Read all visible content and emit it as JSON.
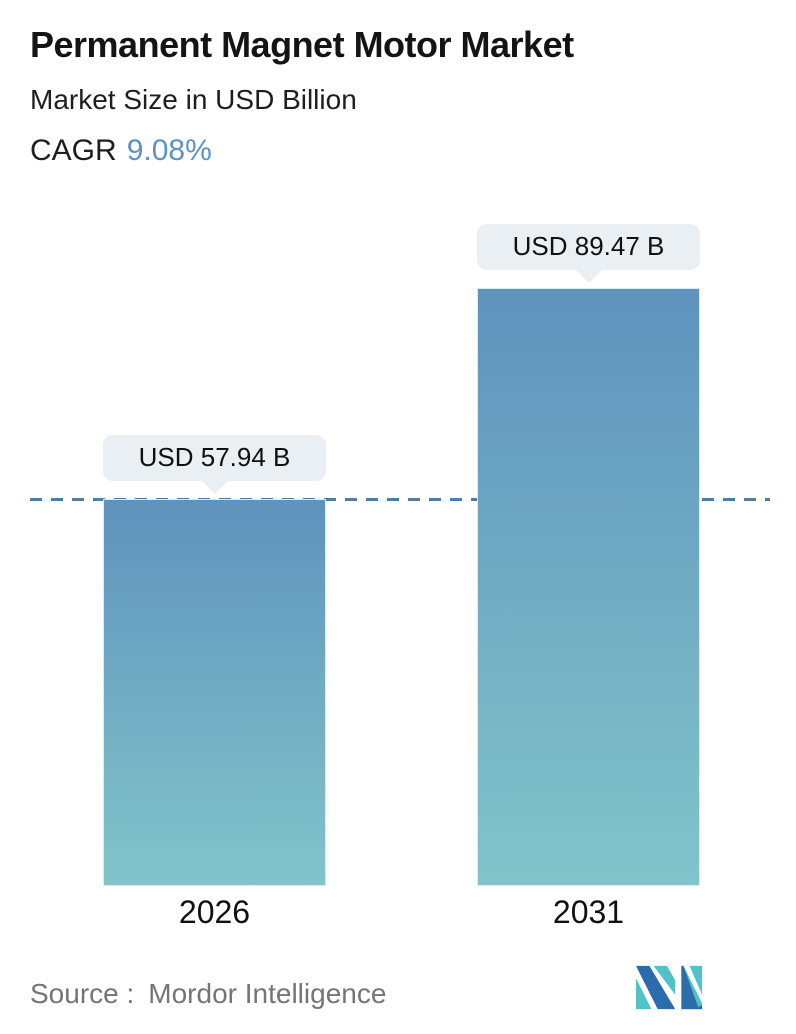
{
  "header": {
    "title": "Permanent Magnet Motor Market",
    "subtitle": "Market Size in USD Billion",
    "cagr_label": "CAGR",
    "cagr_value": "9.08%"
  },
  "chart_data": {
    "type": "bar",
    "categories": [
      "2026",
      "2031"
    ],
    "values": [
      57.94,
      89.47
    ],
    "value_labels": [
      "USD 57.94 B",
      "USD 89.47 B"
    ],
    "unit": "USD Billion",
    "title": "Permanent Magnet Motor Market",
    "ylabel": "Market Size in USD Billion",
    "cagr": "9.08%",
    "grid": false,
    "legend": "none",
    "reference_line": {
      "at_value": 57.94,
      "style": "dashed",
      "color": "#4d7ea8"
    },
    "bar_gradient_top": "#5f93bd",
    "bar_gradient_bottom": "#82c4ca"
  },
  "colors": {
    "accent_blue": "#5d92c3",
    "dash_line": "#4d7ea8",
    "tooltip_bg": "#e9eff2",
    "bar_top": "#5f93bd",
    "bar_bottom": "#82c4ca",
    "source_gray": "#757575",
    "logo_blue": "#2b6cab",
    "logo_teal": "#4fc3c8"
  },
  "footer": {
    "source_label": "Source :",
    "source_value": "Mordor Intelligence",
    "logo_name": "mordor-intelligence-logo"
  }
}
